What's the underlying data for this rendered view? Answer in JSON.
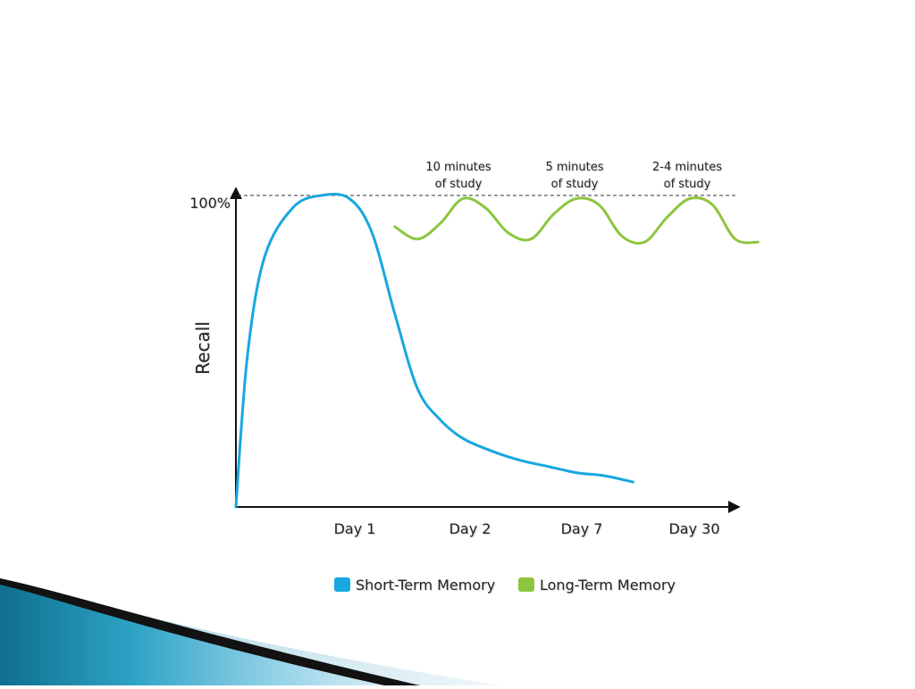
{
  "chart_data": {
    "type": "line",
    "title": "",
    "ylabel": "Recall",
    "xlabel": "",
    "x_ticks": [
      "Day 1",
      "Day 2",
      "Day 7",
      "Day 30"
    ],
    "y_reference": {
      "label": "100%",
      "value": 100,
      "style": "dashed"
    },
    "ylim": [
      0,
      100
    ],
    "grid": false,
    "legend_position": "bottom-center",
    "annotations": [
      {
        "line1": "10 minutes",
        "line2": "of study",
        "near": "Day 2"
      },
      {
        "line1": "5 minutes",
        "line2": "of study",
        "near": "Day 7"
      },
      {
        "line1": "2-4 minutes",
        "line2": "of study",
        "near": "Day 30"
      }
    ],
    "series": [
      {
        "name": "Short-Term Memory",
        "color": "#18a7e0",
        "x": [
          0,
          0.1,
          0.25,
          0.5,
          0.75,
          1.0,
          1.2,
          1.4,
          1.6,
          1.8,
          2.0,
          2.25,
          2.5,
          2.75,
          3.0,
          3.25,
          3.5
        ],
        "y": [
          0,
          48,
          80,
          96,
          100,
          99,
          88,
          62,
          38,
          28,
          22,
          18,
          15,
          13,
          11,
          10,
          8
        ]
      },
      {
        "name": "Long-Term Memory",
        "color": "#8cc63f",
        "x": [
          1.4,
          1.6,
          1.8,
          2.0,
          2.2,
          2.4,
          2.6,
          2.8,
          3.0,
          3.2,
          3.4,
          3.6,
          3.8,
          4.0,
          4.2,
          4.4,
          4.6
        ],
        "y": [
          90,
          86,
          91,
          99,
          96,
          88,
          86,
          94,
          99,
          97,
          87,
          85,
          93,
          99,
          97,
          86,
          85
        ]
      }
    ]
  }
}
